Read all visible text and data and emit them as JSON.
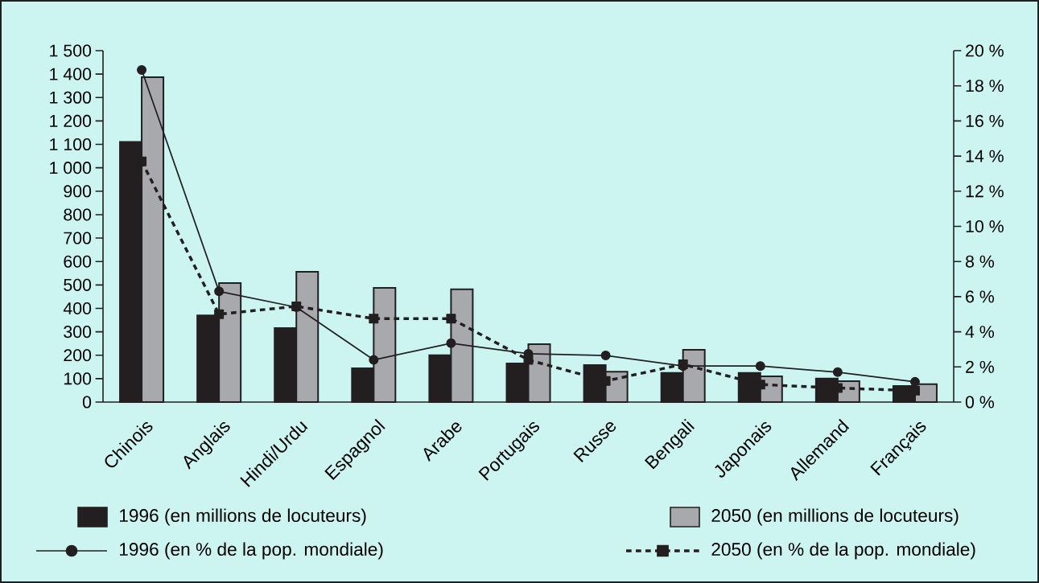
{
  "chart_data": {
    "type": "bar",
    "categories": [
      "Chinois",
      "Anglais",
      "Hindi/Urdu",
      "Espagnol",
      "Arabe",
      "Portugais",
      "Russe",
      "Bengali",
      "Japonais",
      "Allemand",
      "Français"
    ],
    "series": [
      {
        "name": "1996 (en millions de locuteurs)",
        "color": "#231f20",
        "values": [
          1110,
          370,
          316,
          144,
          200,
          165,
          158,
          124,
          124,
          100,
          69
        ]
      },
      {
        "name": "2050 (en millions de locuteurs)",
        "color": "#a7a9ac",
        "values": [
          1387,
          508,
          556,
          487,
          481,
          247,
          130,
          223,
          110,
          89,
          76
        ]
      },
      {
        "name": "1996 (en % de la pop. mondiale)",
        "type": "line",
        "axis": "y2",
        "marker": "circle",
        "line_style": "solid",
        "color": "#231f20",
        "values": [
          18.9,
          6.3,
          5.4,
          2.4,
          3.35,
          2.75,
          2.65,
          2.05,
          2.05,
          1.7,
          1.15
        ]
      },
      {
        "name": "2050 (en % de la pop. mondiale)",
        "type": "line",
        "axis": "y2",
        "marker": "square",
        "line_style": "dashed",
        "color": "#231f20",
        "values": [
          13.7,
          5.0,
          5.45,
          4.75,
          4.75,
          2.4,
          1.2,
          2.15,
          1.0,
          0.8,
          0.65
        ]
      }
    ],
    "ylim": [
      0,
      1500
    ],
    "yticks": [
      0,
      100,
      200,
      300,
      400,
      500,
      600,
      700,
      800,
      900,
      {
        "value": 1000,
        "label": "1 000"
      },
      {
        "value": 1100,
        "label": "1 100"
      },
      {
        "value": 1200,
        "label": "1 200"
      },
      {
        "value": 1300,
        "label": "1 300"
      },
      {
        "value": 1400,
        "label": "1 400"
      },
      {
        "value": 1500,
        "label": "1 500"
      }
    ],
    "y2lim": [
      0,
      20
    ],
    "y2ticks": [
      {
        "value": 0,
        "label": "0 %"
      },
      {
        "value": 2,
        "label": "2 %"
      },
      {
        "value": 4,
        "label": "4 %"
      },
      {
        "value": 6,
        "label": "6 %"
      },
      {
        "value": 8,
        "label": "8 %"
      },
      {
        "value": 10,
        "label": "10 %"
      },
      {
        "value": 12,
        "label": "12 %"
      },
      {
        "value": 14,
        "label": "14 %"
      },
      {
        "value": 16,
        "label": "16 %"
      },
      {
        "value": 18,
        "label": "18 %"
      },
      {
        "value": 20,
        "label": "20 %"
      }
    ],
    "legend": "bottom",
    "grid": false
  }
}
